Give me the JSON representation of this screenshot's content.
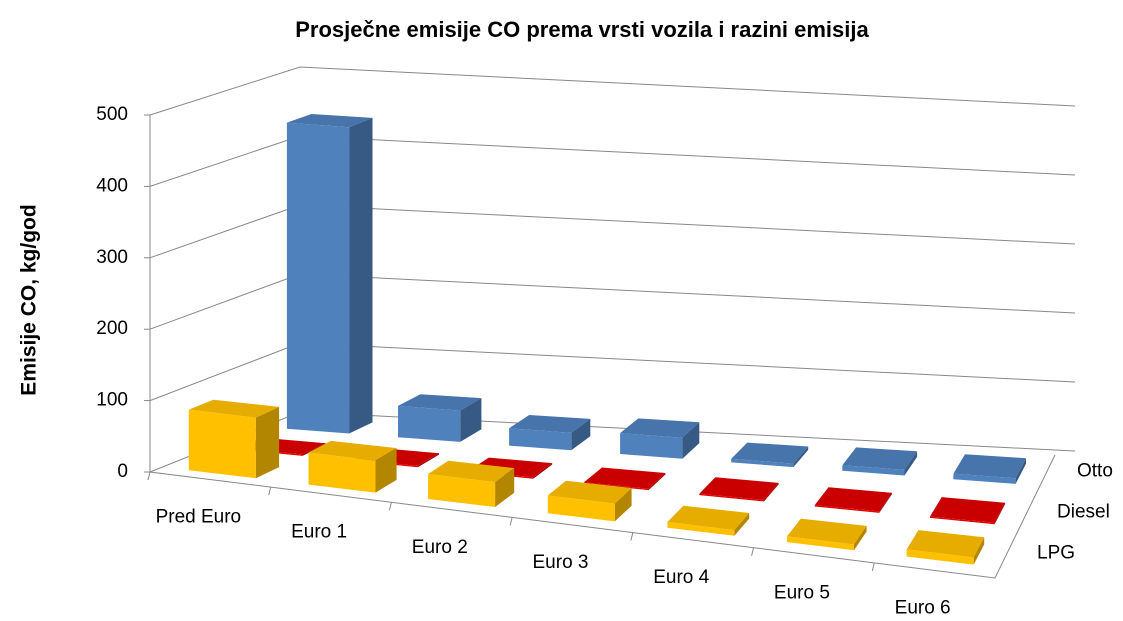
{
  "chart_data": {
    "type": "bar3d",
    "title": "Prosječne emisije CO prema vrsti vozila i razini emisija",
    "y_label": "Emisije CO, kg/god",
    "categories": [
      "Pred Euro",
      "Euro 1",
      "Euro 2",
      "Euro 3",
      "Euro 4",
      "Euro 5",
      "Euro 6"
    ],
    "series": [
      {
        "name": "LPG",
        "color": "#ffc000",
        "values": [
          85,
          45,
          35,
          25,
          8,
          8,
          10
        ]
      },
      {
        "name": "Diesel",
        "color": "#e00000",
        "values": [
          2,
          2,
          2,
          2,
          2,
          2,
          2
        ]
      },
      {
        "name": "Otto",
        "color": "#4f81bd",
        "values": [
          440,
          45,
          25,
          30,
          5,
          8,
          8
        ]
      }
    ],
    "ylim": [
      0,
      500
    ],
    "yticks": [
      0,
      100,
      200,
      300,
      400,
      500
    ],
    "grid": true
  }
}
